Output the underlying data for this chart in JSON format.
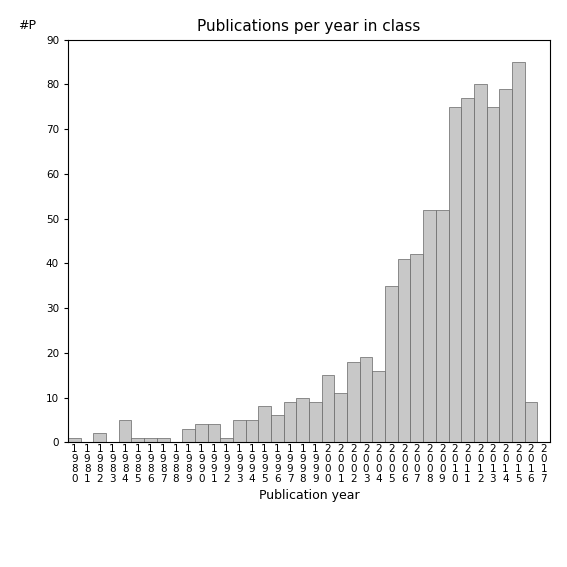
{
  "title": "Publications per year in class",
  "xlabel": "Publication year",
  "ylabel": "#P",
  "years": [
    1980,
    1981,
    1982,
    1983,
    1984,
    1985,
    1986,
    1987,
    1988,
    1989,
    1990,
    1991,
    1992,
    1993,
    1994,
    1995,
    1996,
    1997,
    1998,
    1999,
    2000,
    2001,
    2002,
    2003,
    2004,
    2005,
    2006,
    2007,
    2008,
    2009,
    2010,
    2011,
    2012,
    2013,
    2014,
    2015,
    2016,
    2017
  ],
  "values": [
    1,
    0,
    2,
    0,
    5,
    1,
    1,
    1,
    0,
    3,
    4,
    4,
    1,
    5,
    5,
    8,
    6,
    9,
    10,
    9,
    15,
    11,
    18,
    19,
    16,
    35,
    41,
    42,
    52,
    52,
    75,
    77,
    80,
    75,
    79,
    85,
    9,
    0
  ],
  "bar_color": "#c8c8c8",
  "bar_edge_color": "#666666",
  "ylim": [
    0,
    90
  ],
  "yticks": [
    0,
    10,
    20,
    30,
    40,
    50,
    60,
    70,
    80,
    90
  ],
  "bg_color": "#ffffff",
  "title_fontsize": 11,
  "label_fontsize": 9,
  "tick_fontsize": 7.5
}
